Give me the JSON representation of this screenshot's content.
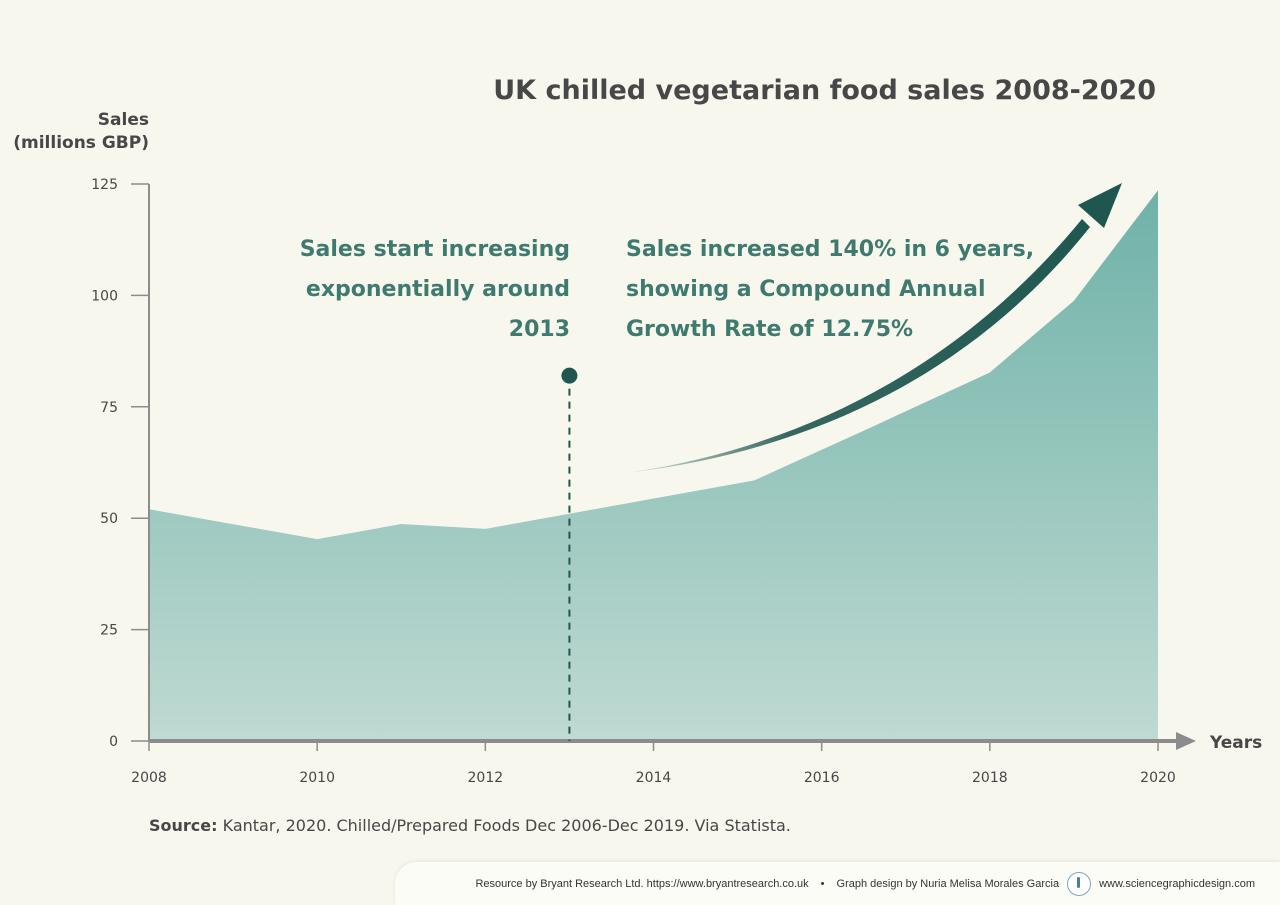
{
  "chart_data": {
    "type": "area",
    "title": "UK chilled vegetarian food sales 2008-2020",
    "ylabel_line1": "Sales",
    "ylabel_line2": "(millions GBP)",
    "xlabel": "Years",
    "x": [
      2008,
      2010,
      2011,
      2012,
      2013,
      2015.2,
      2016.6,
      2018,
      2019,
      2020
    ],
    "values": [
      52,
      45.3,
      48.7,
      47.6,
      51,
      58.5,
      70.5,
      82.7,
      98.8,
      123.6
    ],
    "xlim": [
      2008,
      2020
    ],
    "ylim": [
      0,
      125
    ],
    "xticks": [
      2008,
      2010,
      2012,
      2014,
      2016,
      2018,
      2020
    ],
    "yticks": [
      0,
      25,
      50,
      75,
      100,
      125
    ],
    "marker": {
      "x": 2013,
      "y": 82
    },
    "annotation_left": [
      "Sales start increasing",
      "exponentially around",
      "2013"
    ],
    "annotation_right": [
      "Sales increased 140% in 6 years,",
      "showing a Compound Annual",
      "Growth Rate of 12.75%"
    ],
    "colors": {
      "area_top": "#6fb2a8",
      "area_bottom": "#bfdad2",
      "arrow": "#1f5750",
      "annotation": "#3f7a6f",
      "axis": "#8c8c8c"
    }
  },
  "source": {
    "label": "Source:",
    "text": " Kantar, 2020. Chilled/Prepared Foods Dec 2006-Dec 2019. Via Statista."
  },
  "footer": {
    "resource": "Resource by Bryant Research Ltd.  https://www.bryantresearch.co.uk",
    "separator": "•",
    "design": "Graph design by Nuria Melisa Morales Garcia",
    "website": "www.sciencegraphicdesign.com",
    "logo_icon": "science-graphic-design-logo"
  }
}
